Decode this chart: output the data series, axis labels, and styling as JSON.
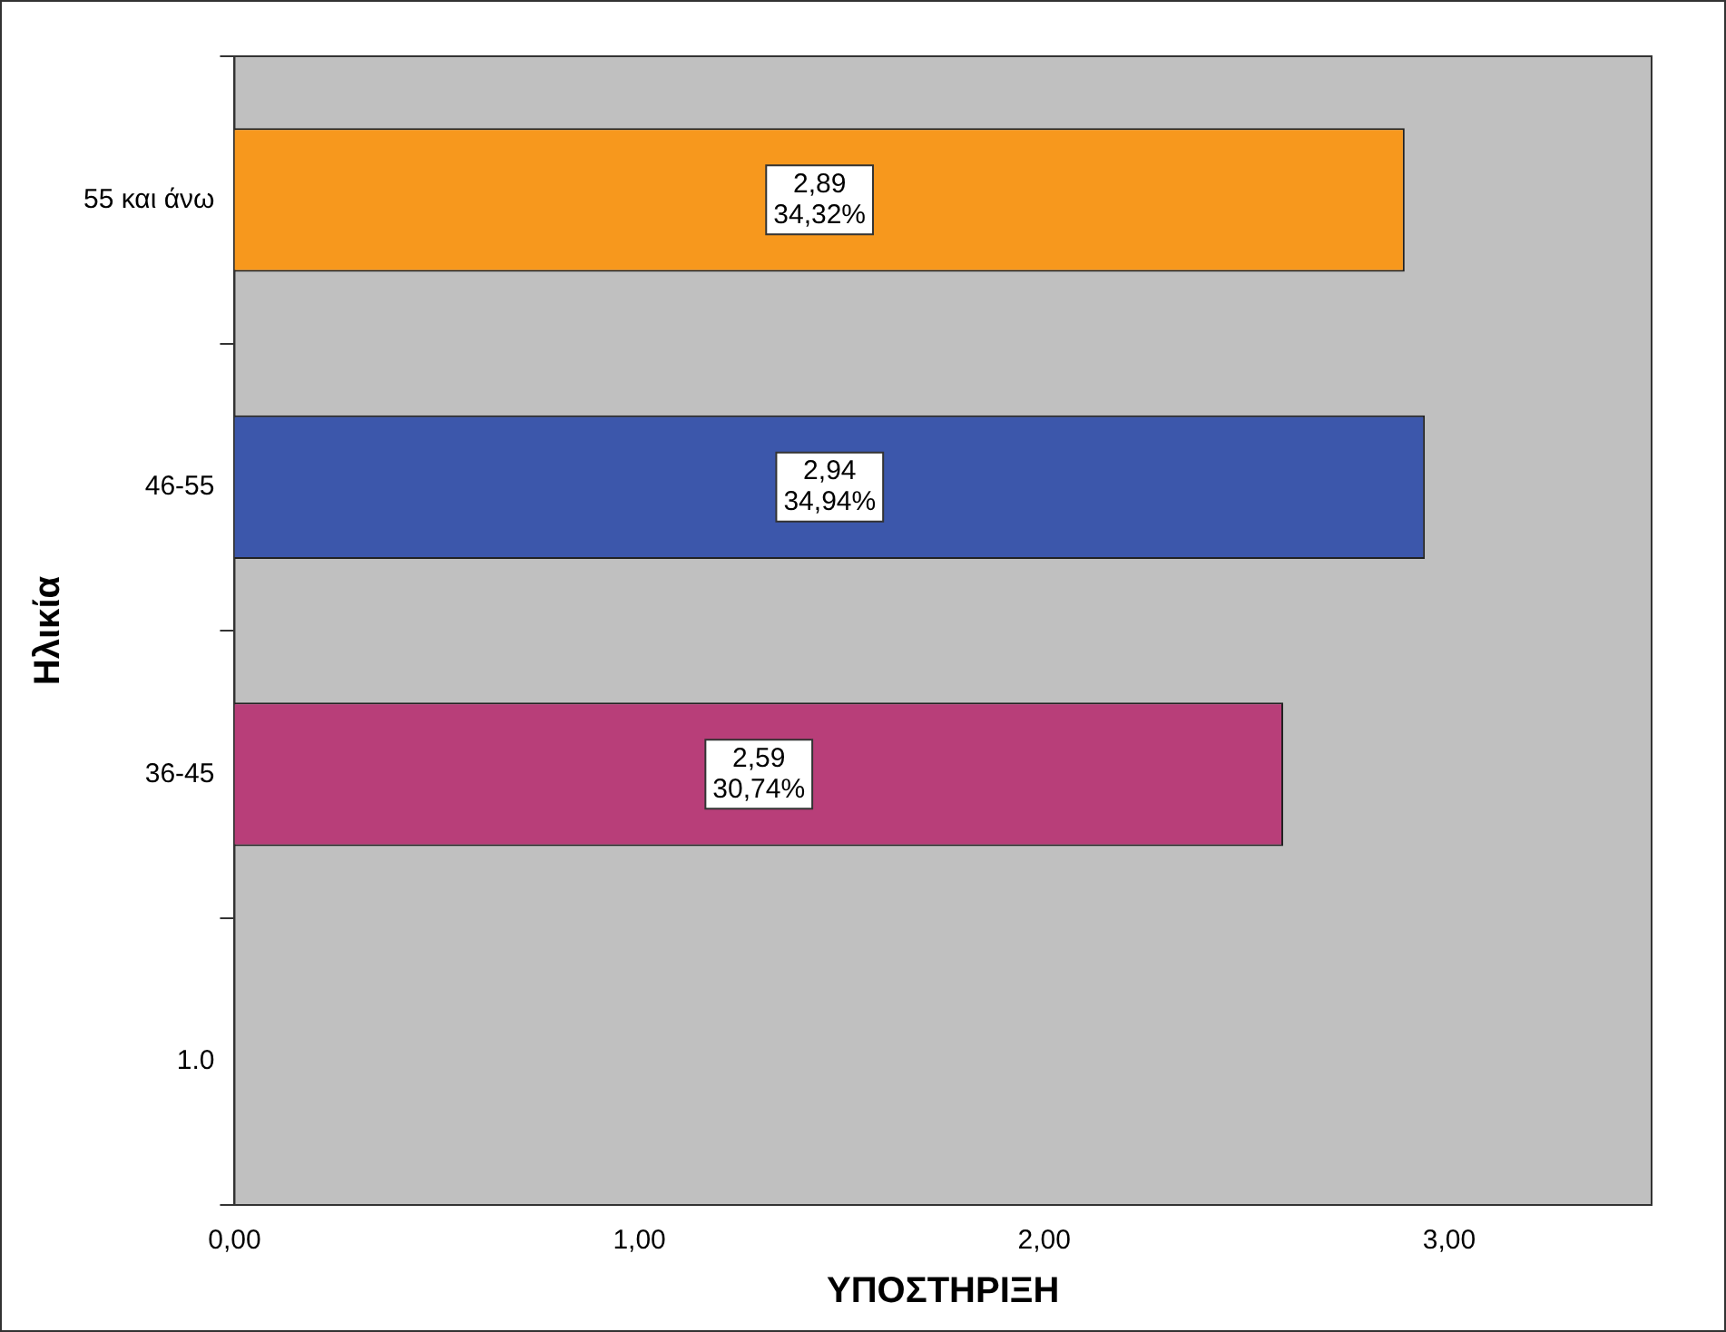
{
  "chart_data": {
    "type": "bar",
    "orientation": "horizontal",
    "xlabel": "ΥΠΟΣΤΗΡΙΞΗ",
    "ylabel": "Ηλικία",
    "categories": [
      "55 και άνω",
      "46-55",
      "36-45",
      "1.0"
    ],
    "values": [
      2.89,
      2.94,
      2.59,
      null
    ],
    "colors": [
      "#f7981d",
      "#3c57ab",
      "#b83e79",
      "#808080"
    ],
    "value_labels": [
      "2,89\n34,32%",
      "2,94\n34,94%",
      "2,59\n30,74%",
      null
    ],
    "xlim": [
      0,
      3.5
    ],
    "xticks": [
      {
        "value": 0,
        "label": "0,00"
      },
      {
        "value": 1,
        "label": "1,00"
      },
      {
        "value": 2,
        "label": "2,00"
      },
      {
        "value": 3,
        "label": "3,00"
      }
    ],
    "grid": false,
    "legend": false
  }
}
